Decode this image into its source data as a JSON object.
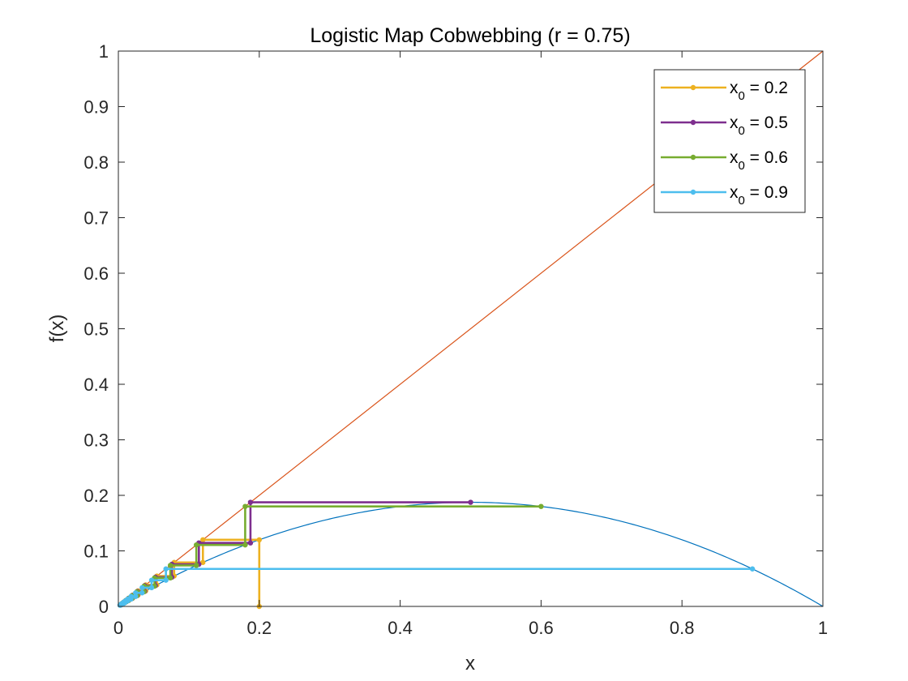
{
  "chart_data": {
    "type": "line",
    "title": "Logistic Map Cobwebbing (r = 0.75)",
    "xlabel": "x",
    "ylabel": "f(x)",
    "xlim": [
      0,
      1
    ],
    "ylim": [
      0,
      1
    ],
    "xticks": [
      "0",
      "0.2",
      "0.4",
      "0.6",
      "0.8",
      "1"
    ],
    "yticks": [
      "0",
      "0.1",
      "0.2",
      "0.3",
      "0.4",
      "0.5",
      "0.6",
      "0.7",
      "0.8",
      "0.9",
      "1"
    ],
    "grid": false,
    "legend_position": "top-right",
    "r": 0.75,
    "function_curve": {
      "expression": "f(x) = r*x*(1-x)",
      "color": "#0072BD"
    },
    "identity_line": {
      "expression": "y = x",
      "color": "#D95319"
    },
    "series": [
      {
        "name": "x_0 = 0.2",
        "name_main": "x",
        "name_sub": "0",
        "name_rest": " = 0.2",
        "color": "#EDB120",
        "points": [
          [
            0.2,
            0
          ],
          [
            0.2,
            0.12
          ],
          [
            0.12,
            0.12
          ],
          [
            0.12,
            0.0792
          ],
          [
            0.0792,
            0.0792
          ],
          [
            0.0792,
            0.0547
          ],
          [
            0.0547,
            0.0547
          ],
          [
            0.0547,
            0.0388
          ],
          [
            0.0388,
            0.0388
          ],
          [
            0.0388,
            0.028
          ],
          [
            0.028,
            0.028
          ],
          [
            0.028,
            0.0204
          ],
          [
            0.0204,
            0.0204
          ],
          [
            0.0204,
            0.015
          ],
          [
            0.015,
            0.015
          ],
          [
            0.015,
            0.0111
          ],
          [
            0.0111,
            0.0111
          ],
          [
            0.0111,
            0.0082
          ],
          [
            0.0082,
            0.0082
          ],
          [
            0.0082,
            0.0061
          ],
          [
            0.0061,
            0.0061
          ],
          [
            0.0061,
            0.0046
          ],
          [
            0.0046,
            0.0046
          ],
          [
            0.0046,
            0.0034
          ],
          [
            0.0034,
            0.0034
          ],
          [
            0.0034,
            0.0025
          ],
          [
            0.0025,
            0.0025
          ]
        ]
      },
      {
        "name": "x_0 = 0.5",
        "name_main": "x",
        "name_sub": "0",
        "name_rest": " = 0.5",
        "color": "#7E2F8E",
        "points": [
          [
            0.5,
            0.1875
          ],
          [
            0.1875,
            0.1875
          ],
          [
            0.1875,
            0.1143
          ],
          [
            0.1143,
            0.1143
          ],
          [
            0.1143,
            0.0759
          ],
          [
            0.0759,
            0.0759
          ],
          [
            0.0759,
            0.0526
          ],
          [
            0.0526,
            0.0526
          ],
          [
            0.0526,
            0.0374
          ],
          [
            0.0374,
            0.0374
          ],
          [
            0.0374,
            0.027
          ],
          [
            0.027,
            0.027
          ],
          [
            0.027,
            0.0197
          ],
          [
            0.0197,
            0.0197
          ],
          [
            0.0197,
            0.0145
          ],
          [
            0.0145,
            0.0145
          ],
          [
            0.0145,
            0.0107
          ],
          [
            0.0107,
            0.0107
          ],
          [
            0.0107,
            0.008
          ],
          [
            0.008,
            0.008
          ],
          [
            0.008,
            0.0059
          ],
          [
            0.0059,
            0.0059
          ],
          [
            0.0059,
            0.0044
          ],
          [
            0.0044,
            0.0044
          ],
          [
            0.0044,
            0.0033
          ],
          [
            0.0033,
            0.0033
          ]
        ]
      },
      {
        "name": "x_0 = 0.6",
        "name_main": "x",
        "name_sub": "0",
        "name_rest": " = 0.6",
        "color": "#77AC30",
        "points": [
          [
            0.6,
            0.18
          ],
          [
            0.18,
            0.18
          ],
          [
            0.18,
            0.1107
          ],
          [
            0.1107,
            0.1107
          ],
          [
            0.1107,
            0.0738
          ],
          [
            0.0738,
            0.0738
          ],
          [
            0.0738,
            0.0513
          ],
          [
            0.0513,
            0.0513
          ],
          [
            0.0513,
            0.0365
          ],
          [
            0.0365,
            0.0365
          ],
          [
            0.0365,
            0.0264
          ],
          [
            0.0264,
            0.0264
          ],
          [
            0.0264,
            0.0193
          ],
          [
            0.0193,
            0.0193
          ],
          [
            0.0193,
            0.0142
          ],
          [
            0.0142,
            0.0142
          ],
          [
            0.0142,
            0.0105
          ],
          [
            0.0105,
            0.0105
          ],
          [
            0.0105,
            0.0078
          ],
          [
            0.0078,
            0.0078
          ],
          [
            0.0078,
            0.0058
          ],
          [
            0.0058,
            0.0058
          ],
          [
            0.0058,
            0.0043
          ],
          [
            0.0043,
            0.0043
          ],
          [
            0.0043,
            0.0032
          ],
          [
            0.0032,
            0.0032
          ]
        ]
      },
      {
        "name": "x_0 = 0.9",
        "name_main": "x",
        "name_sub": "0",
        "name_rest": " = 0.9",
        "color": "#4DBEEE",
        "points": [
          [
            0.9,
            0.0675
          ],
          [
            0.0675,
            0.0675
          ],
          [
            0.0675,
            0.0472
          ],
          [
            0.0472,
            0.0472
          ],
          [
            0.0472,
            0.0337
          ],
          [
            0.0337,
            0.0337
          ],
          [
            0.0337,
            0.0244
          ],
          [
            0.0244,
            0.0244
          ],
          [
            0.0244,
            0.0179
          ],
          [
            0.0179,
            0.0179
          ],
          [
            0.0179,
            0.0132
          ],
          [
            0.0132,
            0.0132
          ],
          [
            0.0132,
            0.0098
          ],
          [
            0.0098,
            0.0098
          ],
          [
            0.0098,
            0.0073
          ],
          [
            0.0073,
            0.0073
          ],
          [
            0.0073,
            0.0054
          ],
          [
            0.0054,
            0.0054
          ],
          [
            0.0054,
            0.004
          ],
          [
            0.004,
            0.004
          ],
          [
            0.004,
            0.003
          ],
          [
            0.003,
            0.003
          ],
          [
            0.003,
            0.0022
          ],
          [
            0.0022,
            0.0022
          ]
        ]
      }
    ]
  }
}
